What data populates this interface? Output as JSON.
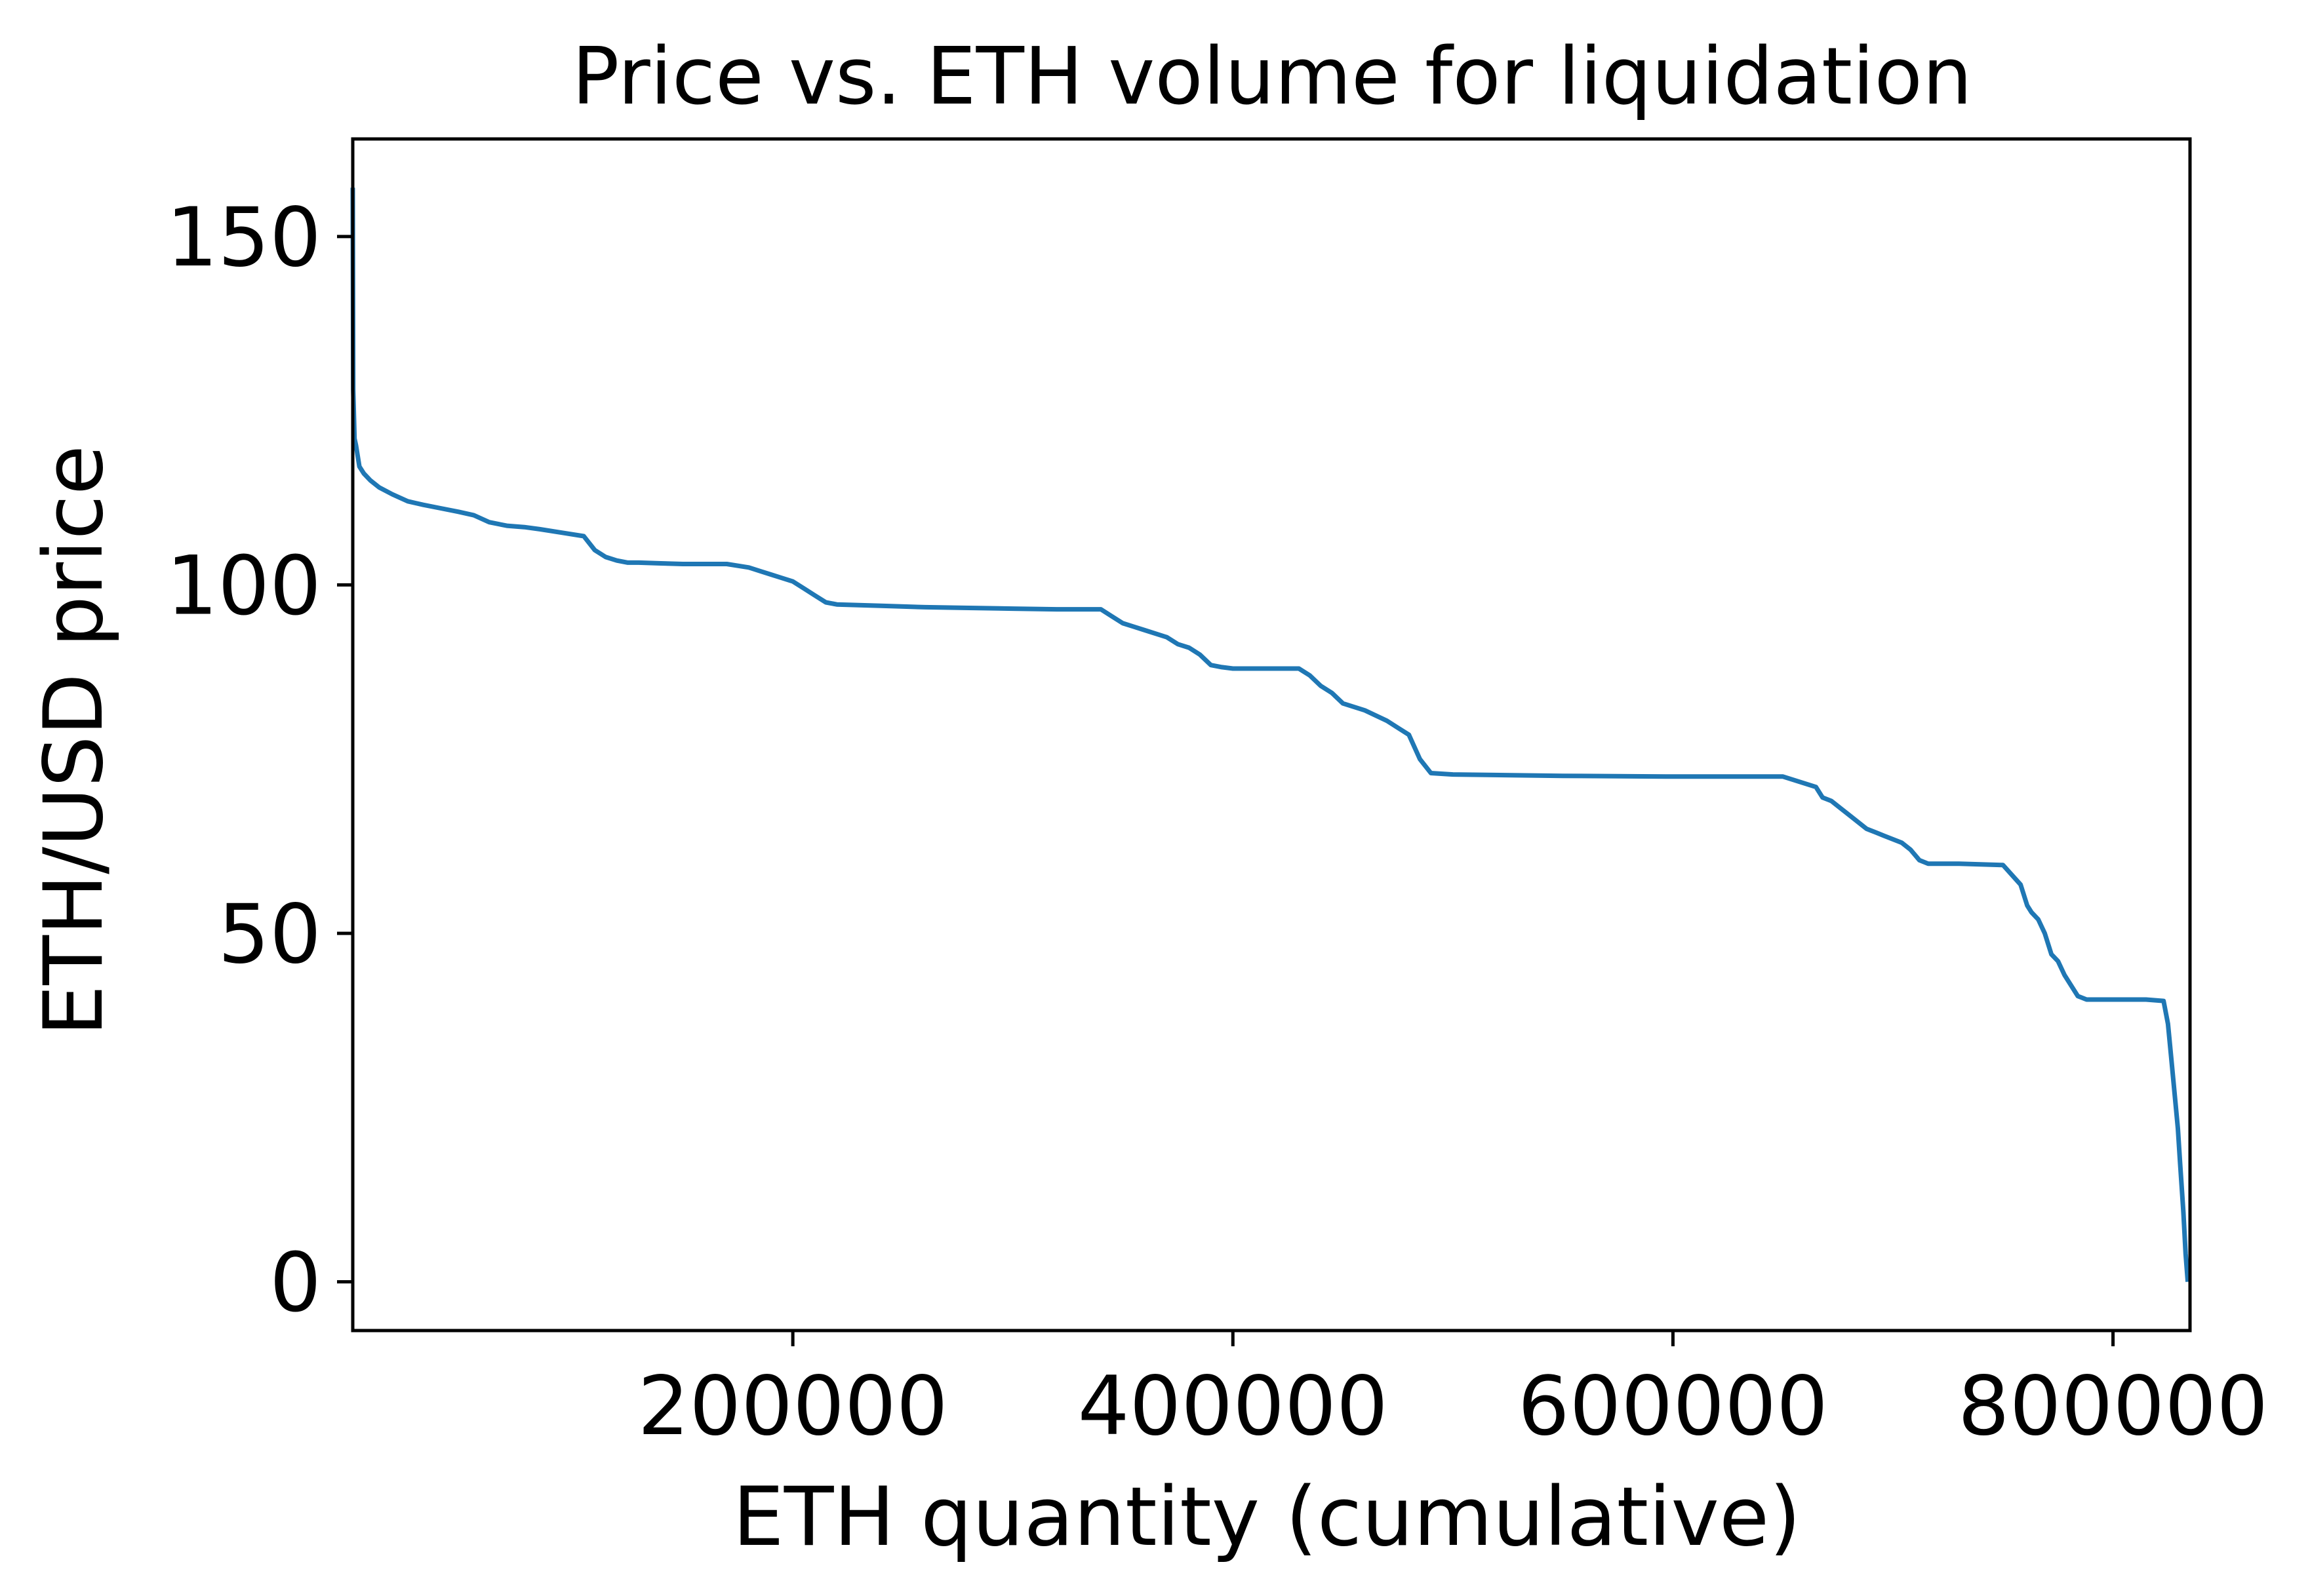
{
  "chart_data": {
    "type": "line",
    "title": "Price vs. ETH volume for liquidation",
    "xlabel": "ETH quantity (cumulative)",
    "ylabel": "ETH/USD price",
    "xlim": [
      0,
      835000
    ],
    "ylim": [
      -7,
      164
    ],
    "xticks": [
      200000,
      400000,
      600000,
      800000
    ],
    "xtick_labels": [
      "200000",
      "400000",
      "600000",
      "800000"
    ],
    "yticks": [
      0,
      50,
      100,
      150
    ],
    "ytick_labels": [
      "0",
      "50",
      "100",
      "150"
    ],
    "grid": false,
    "legend": "none",
    "colors": {
      "series": "#1f77b4",
      "axes": "#000000",
      "background": "#ffffff"
    },
    "series": [
      {
        "x": [
          0,
          200,
          800,
          1500,
          3000,
          5000,
          8000,
          12000,
          18000,
          25000,
          32000,
          40000,
          48000,
          55000,
          62000,
          70000,
          78000,
          85000,
          95000,
          105000,
          110000,
          115000,
          120000,
          125000,
          130000,
          140000,
          150000,
          170000,
          180000,
          185000,
          190000,
          195000,
          200000,
          205000,
          210000,
          215000,
          220000,
          230000,
          240000,
          260000,
          280000,
          300000,
          320000,
          340000,
          345000,
          350000,
          355000,
          360000,
          370000,
          375000,
          380000,
          385000,
          390000,
          395000,
          400000,
          410000,
          430000,
          435000,
          440000,
          445000,
          450000,
          460000,
          470000,
          475000,
          480000,
          485000,
          490000,
          500000,
          550000,
          600000,
          650000,
          665000,
          668000,
          672000,
          676000,
          680000,
          684000,
          688000,
          692000,
          696000,
          700000,
          704000,
          708000,
          712000,
          716000,
          720000,
          730000,
          750000,
          758000,
          761000,
          763000,
          766000,
          769000,
          772000,
          775000,
          778000,
          781000,
          784000,
          788000,
          800000,
          815000,
          823000,
          825000,
          826500,
          828000,
          829500,
          830500,
          832000,
          833000,
          834000
        ],
        "y": [
          157,
          128,
          121,
          120,
          117,
          116,
          115,
          114,
          113,
          112,
          111.5,
          111,
          110.5,
          110,
          109,
          108.5,
          108.3,
          108,
          107.5,
          107,
          105,
          104,
          103.5,
          103.2,
          103.2,
          103.1,
          103,
          103,
          102.5,
          102,
          101.5,
          101,
          100.5,
          99.5,
          98.5,
          97.5,
          97.2,
          97.1,
          97,
          96.8,
          96.7,
          96.6,
          96.5,
          96.5,
          95.5,
          94.5,
          94,
          93.5,
          92.5,
          91.5,
          91,
          90,
          88.5,
          88.2,
          88,
          88,
          88,
          87,
          85.5,
          84.5,
          83,
          82,
          80.5,
          79.5,
          78.5,
          75,
          73,
          72.8,
          72.6,
          72.5,
          72.5,
          71,
          69.5,
          69,
          68,
          67,
          66,
          65,
          64.5,
          64,
          63.5,
          63,
          62,
          60.5,
          60,
          60,
          60,
          59.8,
          57,
          54,
          53,
          52,
          50,
          47,
          46,
          44,
          42.5,
          41,
          40.5,
          40.5,
          40.5,
          40.3,
          37,
          32,
          27,
          22,
          17,
          10,
          4,
          0
        ]
      }
    ]
  }
}
